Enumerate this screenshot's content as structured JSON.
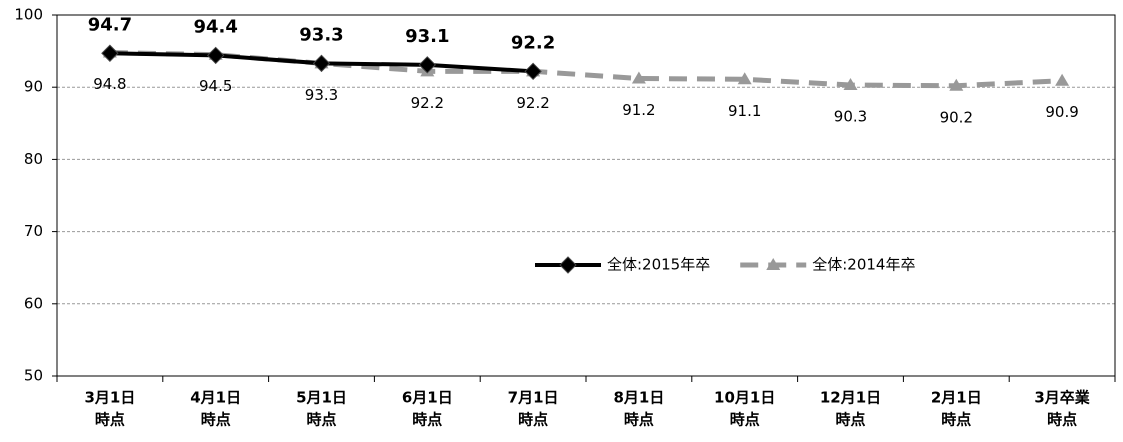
{
  "chart_data": {
    "type": "line",
    "categories": [
      [
        "3月1日",
        "時点"
      ],
      [
        "4月1日",
        "時点"
      ],
      [
        "5月1日",
        "時点"
      ],
      [
        "6月1日",
        "時点"
      ],
      [
        "7月1日",
        "時点"
      ],
      [
        "8月1日",
        "時点"
      ],
      [
        "10月1日",
        "時点"
      ],
      [
        "12月1日",
        "時点"
      ],
      [
        "2月1日",
        "時点"
      ],
      [
        "3月卒業",
        "時点"
      ]
    ],
    "series": [
      {
        "name": "全体:2015年卒",
        "color": "#000000",
        "marker": "diamond",
        "dash": false,
        "values": [
          94.7,
          94.4,
          93.3,
          93.1,
          92.2,
          null,
          null,
          null,
          null,
          null
        ]
      },
      {
        "name": "全体:2014年卒",
        "color": "#999999",
        "marker": "triangle",
        "dash": true,
        "values": [
          94.8,
          94.5,
          93.3,
          92.2,
          92.2,
          91.2,
          91.1,
          90.3,
          90.2,
          90.9
        ]
      }
    ],
    "ylim": [
      50,
      100
    ],
    "yticks": [
      50,
      60,
      70,
      80,
      90,
      100
    ],
    "grid": true
  }
}
